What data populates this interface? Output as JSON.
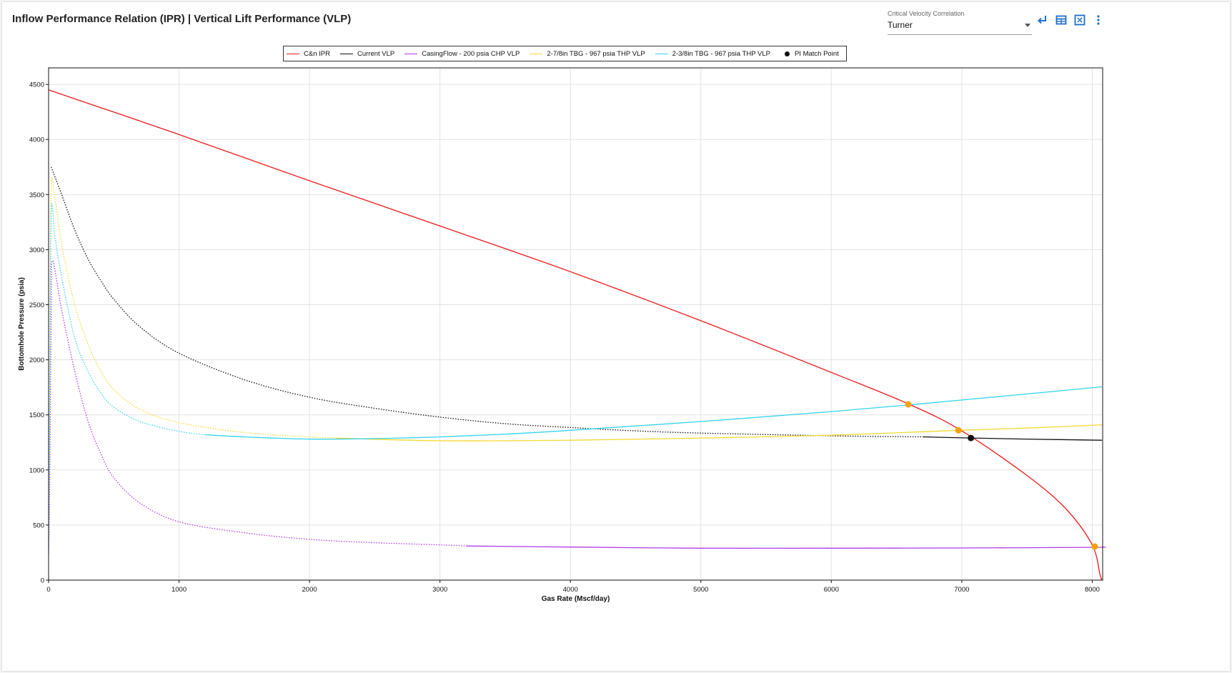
{
  "page": {
    "title": "Inflow Performance Relation (IPR) | Vertical Lift Performance (VLP)"
  },
  "controls": {
    "correlation_label": "Critical Velocity Correlation",
    "correlation_value": "Turner",
    "icons": [
      "enter-icon",
      "table-icon",
      "fit-view-icon",
      "more-vert-icon"
    ],
    "accent_color": "#1e6fc8"
  },
  "legend": {
    "items": [
      {
        "label": "C&n IPR",
        "color": "#e8191a",
        "kind": "line"
      },
      {
        "label": "Current VLP",
        "color": "#111111",
        "kind": "line"
      },
      {
        "label": "CasingFlow - 200 psia CHP VLP",
        "color": "#b23be8",
        "kind": "line"
      },
      {
        "label": "2-7/8in TBG - 967 psia THP VLP",
        "color": "#f5d931",
        "kind": "line"
      },
      {
        "label": "2-3/8in TBG - 967 psia THP VLP",
        "color": "#34d3ee",
        "kind": "line"
      },
      {
        "label": "PI Match Point",
        "color": "#111111",
        "kind": "dot"
      }
    ]
  },
  "chart_data": {
    "type": "line",
    "xlabel": "Gas Rate (Mscf/day)",
    "ylabel": "Bottomhole Pressure (psia)",
    "xlim": [
      0,
      8080
    ],
    "ylim": [
      0,
      4650
    ],
    "xticks": [
      0,
      1000,
      2000,
      3000,
      4000,
      5000,
      6000,
      7000,
      8000
    ],
    "yticks": [
      0,
      500,
      1000,
      1500,
      2000,
      2500,
      3000,
      3500,
      4000,
      4500
    ],
    "grid": true,
    "legend_position": "top-center",
    "series": [
      {
        "name": "C&n IPR",
        "color": "#e8191a",
        "style": "solid",
        "points": [
          [
            0,
            4450
          ],
          [
            1000,
            4045
          ],
          [
            2000,
            3625
          ],
          [
            3000,
            3215
          ],
          [
            4000,
            2800
          ],
          [
            5000,
            2355
          ],
          [
            6000,
            1885
          ],
          [
            6600,
            1595
          ],
          [
            7000,
            1355
          ],
          [
            7500,
            950
          ],
          [
            7800,
            645
          ],
          [
            8000,
            320
          ],
          [
            8060,
            50
          ],
          [
            8075,
            0
          ]
        ]
      },
      {
        "name": "Current VLP",
        "color": "#111111",
        "segments": [
          {
            "style": "dotted",
            "points": [
              [
                20,
                3750
              ],
              [
                100,
                3500
              ],
              [
                200,
                3180
              ],
              [
                300,
                2920
              ],
              [
                400,
                2720
              ],
              [
                500,
                2550
              ],
              [
                700,
                2300
              ],
              [
                1000,
                2060
              ],
              [
                1500,
                1820
              ],
              [
                2000,
                1660
              ],
              [
                2500,
                1560
              ],
              [
                3000,
                1480
              ],
              [
                3500,
                1420
              ],
              [
                4000,
                1385
              ],
              [
                4500,
                1355
              ],
              [
                5000,
                1335
              ],
              [
                6000,
                1310
              ],
              [
                6700,
                1300
              ]
            ]
          },
          {
            "style": "solid",
            "points": [
              [
                6700,
                1300
              ],
              [
                7070,
                1290
              ],
              [
                7500,
                1280
              ],
              [
                8075,
                1270
              ]
            ]
          }
        ]
      },
      {
        "name": "CasingFlow - 200 psia CHP VLP",
        "color": "#b23be8",
        "segments": [
          {
            "style": "dotted",
            "points": [
              [
                0,
                250
              ],
              [
                10,
                1000
              ],
              [
                20,
                2400
              ],
              [
                30,
                2900
              ],
              [
                100,
                2450
              ],
              [
                200,
                1900
              ],
              [
                300,
                1450
              ],
              [
                400,
                1150
              ],
              [
                500,
                930
              ],
              [
                700,
                700
              ],
              [
                1000,
                530
              ],
              [
                1500,
                430
              ],
              [
                2000,
                370
              ],
              [
                2500,
                340
              ],
              [
                3000,
                320
              ],
              [
                3200,
                310
              ]
            ]
          },
          {
            "style": "solid",
            "points": [
              [
                3200,
                310
              ],
              [
                4000,
                300
              ],
              [
                5000,
                290
              ],
              [
                6000,
                290
              ],
              [
                7000,
                292
              ],
              [
                8000,
                298
              ],
              [
                8075,
                300
              ]
            ]
          }
        ]
      },
      {
        "name": "2-7/8in TBG - 967 psia THP VLP",
        "color": "#f5d931",
        "segments": [
          {
            "style": "dotted",
            "points": [
              [
                0,
                350
              ],
              [
                10,
                2000
              ],
              [
                20,
                3550
              ],
              [
                50,
                3450
              ],
              [
                100,
                3050
              ],
              [
                200,
                2500
              ],
              [
                300,
                2150
              ],
              [
                400,
                1900
              ],
              [
                500,
                1730
              ],
              [
                700,
                1550
              ],
              [
                1000,
                1430
              ],
              [
                1500,
                1340
              ],
              [
                2000,
                1300
              ],
              [
                2200,
                1290
              ]
            ]
          },
          {
            "style": "solid",
            "points": [
              [
                2200,
                1290
              ],
              [
                3000,
                1265
              ],
              [
                4000,
                1270
              ],
              [
                5000,
                1290
              ],
              [
                6000,
                1315
              ],
              [
                6970,
                1360
              ],
              [
                7500,
                1380
              ],
              [
                8075,
                1410
              ]
            ]
          }
        ]
      },
      {
        "name": "2-3/8in TBG - 967 psia THP VLP",
        "color": "#34d3ee",
        "segments": [
          {
            "style": "dotted",
            "points": [
              [
                0,
                300
              ],
              [
                10,
                1800
              ],
              [
                20,
                3350
              ],
              [
                50,
                3100
              ],
              [
                100,
                2750
              ],
              [
                200,
                2200
              ],
              [
                300,
                1900
              ],
              [
                400,
                1700
              ],
              [
                500,
                1570
              ],
              [
                700,
                1440
              ],
              [
                1000,
                1350
              ],
              [
                1200,
                1320
              ]
            ]
          },
          {
            "style": "solid",
            "points": [
              [
                1200,
                1320
              ],
              [
                1500,
                1300
              ],
              [
                2000,
                1280
              ],
              [
                2500,
                1285
              ],
              [
                3000,
                1300
              ],
              [
                3500,
                1325
              ],
              [
                4000,
                1360
              ],
              [
                5000,
                1440
              ],
              [
                6000,
                1530
              ],
              [
                6590,
                1590
              ],
              [
                7000,
                1635
              ],
              [
                7500,
                1690
              ],
              [
                8075,
                1755
              ]
            ]
          }
        ]
      }
    ],
    "intersection_points": [
      {
        "x": 6590,
        "y": 1595,
        "color": "#f5a20a"
      },
      {
        "x": 6975,
        "y": 1360,
        "color": "#f5a20a"
      },
      {
        "x": 8020,
        "y": 305,
        "color": "#f5a20a"
      }
    ],
    "pi_match_point": {
      "name": "PI Match Point",
      "x": 7070,
      "y": 1290,
      "color": "#111111"
    }
  }
}
